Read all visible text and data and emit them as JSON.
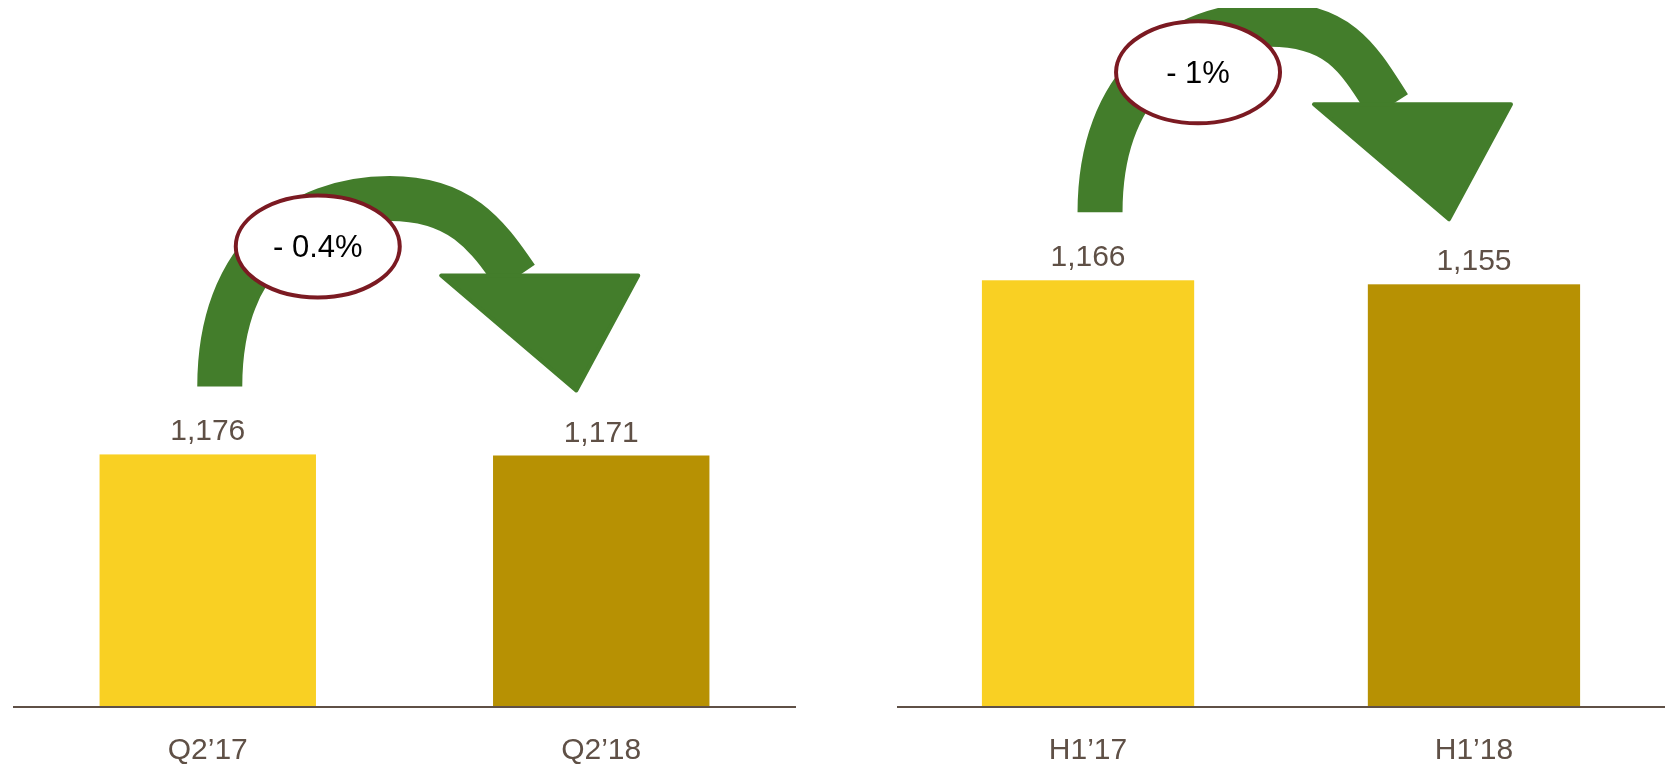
{
  "chart_data": [
    {
      "type": "bar",
      "relative": false,
      "categories": [
        "Q2’17",
        "Q2’18"
      ],
      "values": [
        1176,
        1171
      ],
      "colors": [
        "#f9d023",
        "#b79103"
      ],
      "value_labels": [
        "1,176",
        "1,171"
      ],
      "annotations": [
        "- 0.4%"
      ]
    },
    {
      "type": "bar",
      "relative": false,
      "categories": [
        "H1’17",
        "H1’18"
      ],
      "values": [
        1166,
        1155
      ],
      "colors": [
        "#f9d023",
        "#b79103"
      ],
      "value_labels": [
        "1,166",
        "1,155"
      ],
      "annotations": [
        "- 1%"
      ]
    }
  ]
}
